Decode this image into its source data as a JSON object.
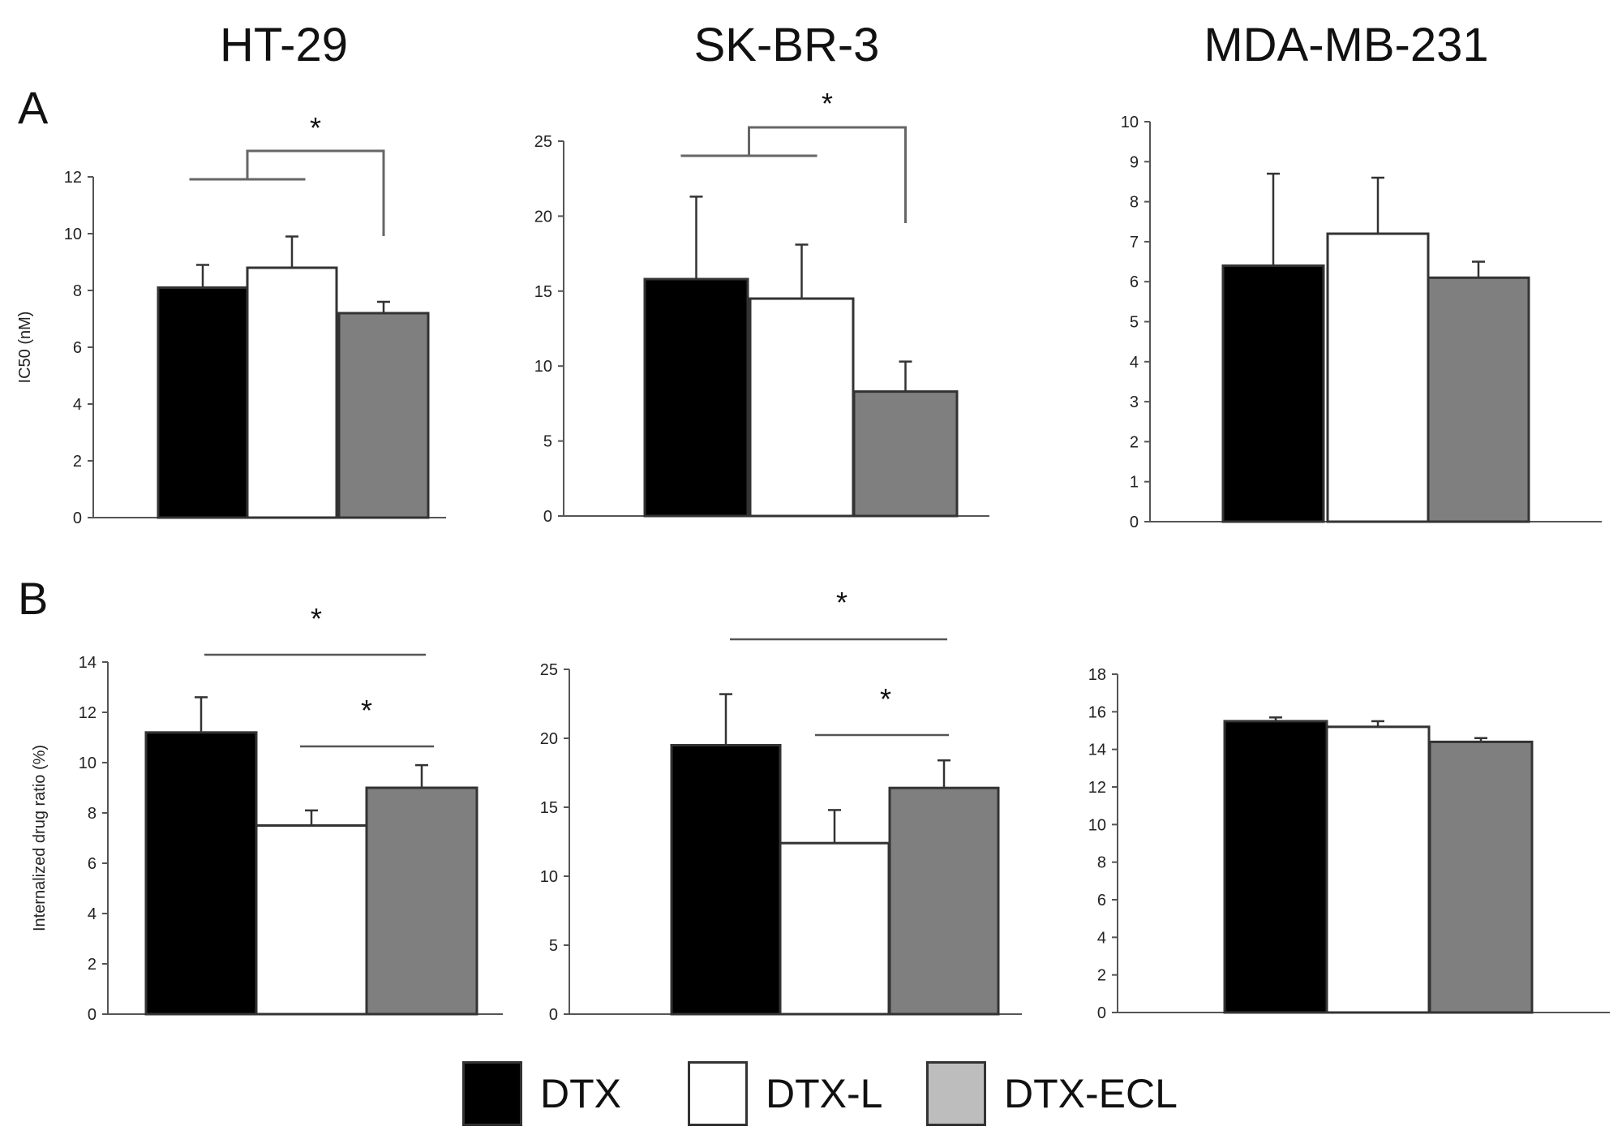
{
  "titles": {
    "col1": "HT-29",
    "col2": "SK-BR-3",
    "col3": "MDA-MB-231"
  },
  "panels": {
    "a": "A",
    "b": "B"
  },
  "colors": {
    "DTX": "#000000",
    "DTX-L": "#ffffff",
    "DTX-ECL": "#7f7f7f",
    "legend_ecl": "#bdbdbd"
  },
  "legend": [
    {
      "label": "DTX",
      "color": "#000000"
    },
    {
      "label": "DTX-L",
      "color": "#ffffff"
    },
    {
      "label": "DTX-ECL",
      "color": "#bdbdbd"
    }
  ],
  "chart_data": [
    {
      "id": "A-HT-29",
      "type": "bar",
      "title": "HT-29",
      "panel": "A",
      "ylabel": "IC50 (nM)",
      "ylim": [
        0,
        12
      ],
      "yticks": [
        0,
        2,
        4,
        6,
        8,
        10,
        12
      ],
      "categories": [
        "DTX",
        "DTX-L",
        "DTX-ECL"
      ],
      "values": [
        8.1,
        8.8,
        7.2
      ],
      "errors": [
        0.8,
        1.1,
        0.4
      ],
      "annotations": [
        "*"
      ]
    },
    {
      "id": "A-SK-BR-3",
      "type": "bar",
      "title": "SK-BR-3",
      "panel": "A",
      "ylabel": "",
      "ylim": [
        0,
        25
      ],
      "yticks": [
        0,
        5,
        10,
        15,
        20,
        25
      ],
      "categories": [
        "DTX",
        "DTX-L",
        "DTX-ECL"
      ],
      "values": [
        15.8,
        14.5,
        8.3
      ],
      "errors": [
        5.5,
        3.6,
        2.0
      ],
      "annotations": [
        "*"
      ]
    },
    {
      "id": "A-MDA-MB-231",
      "type": "bar",
      "title": "MDA-MB-231",
      "panel": "A",
      "ylabel": "",
      "ylim": [
        0,
        10
      ],
      "yticks": [
        0,
        1,
        2,
        3,
        4,
        5,
        6,
        7,
        8,
        9,
        10
      ],
      "categories": [
        "DTX",
        "DTX-L",
        "DTX-ECL"
      ],
      "values": [
        6.4,
        7.2,
        6.1
      ],
      "errors": [
        2.3,
        1.4,
        0.4
      ],
      "annotations": []
    },
    {
      "id": "B-HT-29",
      "type": "bar",
      "title": "HT-29",
      "panel": "B",
      "ylabel": "Internalized drug ratio (%)",
      "ylim": [
        0,
        14
      ],
      "yticks": [
        0,
        2,
        4,
        6,
        8,
        10,
        12,
        14
      ],
      "categories": [
        "DTX",
        "DTX-L",
        "DTX-ECL"
      ],
      "values": [
        11.2,
        7.5,
        9.0
      ],
      "errors": [
        1.4,
        0.6,
        0.9
      ],
      "annotations": [
        "*",
        "*"
      ]
    },
    {
      "id": "B-SK-BR-3",
      "type": "bar",
      "title": "SK-BR-3",
      "panel": "B",
      "ylabel": "",
      "ylim": [
        0,
        25
      ],
      "yticks": [
        0,
        5,
        10,
        15,
        20,
        25
      ],
      "categories": [
        "DTX",
        "DTX-L",
        "DTX-ECL"
      ],
      "values": [
        19.5,
        12.4,
        16.4
      ],
      "errors": [
        3.7,
        2.4,
        2.0
      ],
      "annotations": [
        "*",
        "*"
      ]
    },
    {
      "id": "B-MDA-MB-231",
      "type": "bar",
      "title": "MDA-MB-231",
      "panel": "B",
      "ylabel": "",
      "ylim": [
        0,
        18
      ],
      "yticks": [
        0,
        2,
        4,
        6,
        8,
        10,
        12,
        14,
        16,
        18
      ],
      "categories": [
        "DTX",
        "DTX-L",
        "DTX-ECL"
      ],
      "values": [
        15.5,
        15.2,
        14.4
      ],
      "errors": [
        0.2,
        0.3,
        0.2
      ],
      "annotations": []
    }
  ]
}
